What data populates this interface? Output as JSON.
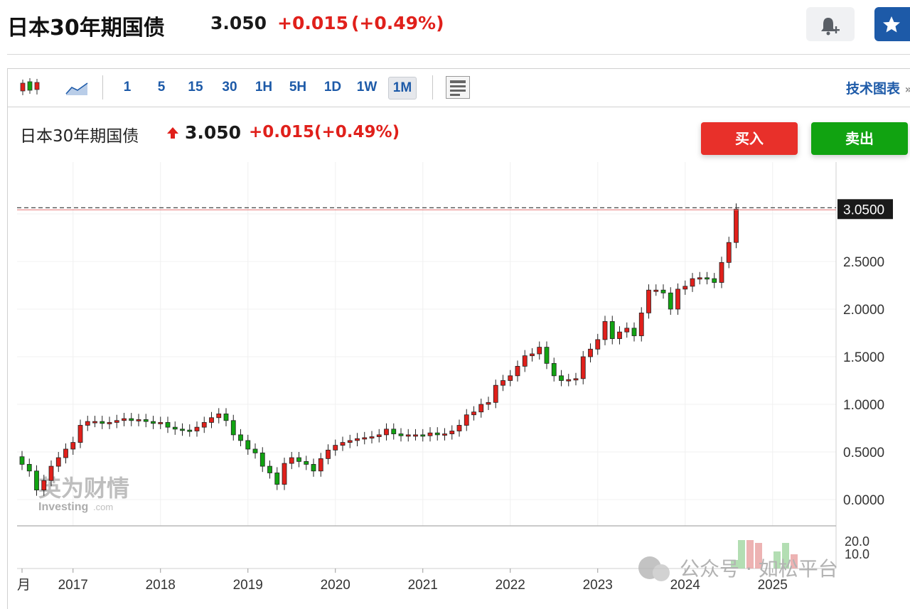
{
  "header": {
    "title": "日本30年期国债",
    "price": "3.050",
    "change": "+0.015",
    "percent": "(+0.49%)"
  },
  "toolbar": {
    "intervals": [
      "1",
      "5",
      "15",
      "30",
      "1H",
      "5H",
      "1D",
      "1W",
      "1M"
    ],
    "active_interval": "1M",
    "tech_chart_label": "技术图表",
    "tech_chart_arrow": "»"
  },
  "legend": {
    "name": "日本30年期国债",
    "price": "3.050",
    "change": "+0.015",
    "percent": "(+0.49%)"
  },
  "actions": {
    "buy_label": "买入",
    "sell_label": "卖出"
  },
  "watermark": {
    "cn_text": "英为财情",
    "en_text": "Investing",
    "en_suffix": ".com",
    "wechat_text": "公众号 · 如松平台"
  },
  "colors": {
    "up": "#e0201b",
    "down": "#11a311",
    "accent": "#1d5aa8",
    "price_tag": "#1a1a1a"
  },
  "chart_data": {
    "type": "candlestick",
    "interval": "1M",
    "last_price_label": "3.0500",
    "y_ticks": [
      "0.0000",
      "0.5000",
      "1.0000",
      "1.5000",
      "2.0000",
      "2.5000"
    ],
    "ylim": [
      -0.3,
      3.45
    ],
    "volume_ticks": [
      "20.0",
      "10.0"
    ],
    "x_ticks": [
      "2017",
      "2018",
      "2019",
      "2020",
      "2021",
      "2022",
      "2023",
      "2024",
      "2025"
    ],
    "x_partial_label": "月",
    "closes": [
      0.37,
      0.3,
      0.1,
      0.2,
      0.35,
      0.44,
      0.53,
      0.6,
      0.78,
      0.82,
      0.82,
      0.8,
      0.81,
      0.83,
      0.85,
      0.83,
      0.84,
      0.82,
      0.8,
      0.81,
      0.76,
      0.74,
      0.73,
      0.72,
      0.76,
      0.81,
      0.86,
      0.9,
      0.83,
      0.68,
      0.62,
      0.53,
      0.49,
      0.35,
      0.28,
      0.16,
      0.38,
      0.44,
      0.4,
      0.37,
      0.3,
      0.43,
      0.52,
      0.57,
      0.6,
      0.62,
      0.64,
      0.65,
      0.66,
      0.68,
      0.74,
      0.69,
      0.67,
      0.68,
      0.68,
      0.67,
      0.7,
      0.68,
      0.69,
      0.72,
      0.78,
      0.89,
      0.92,
      1.0,
      1.02,
      1.2,
      1.25,
      1.3,
      1.4,
      1.51,
      1.53,
      1.6,
      1.43,
      1.3,
      1.25,
      1.26,
      1.27,
      1.5,
      1.58,
      1.68,
      1.87,
      1.69,
      1.76,
      1.8,
      1.72,
      1.96,
      2.2,
      2.2,
      2.17,
      2.0,
      2.21,
      2.24,
      2.32,
      2.33,
      2.32,
      2.28,
      2.49,
      2.7,
      3.05
    ]
  }
}
